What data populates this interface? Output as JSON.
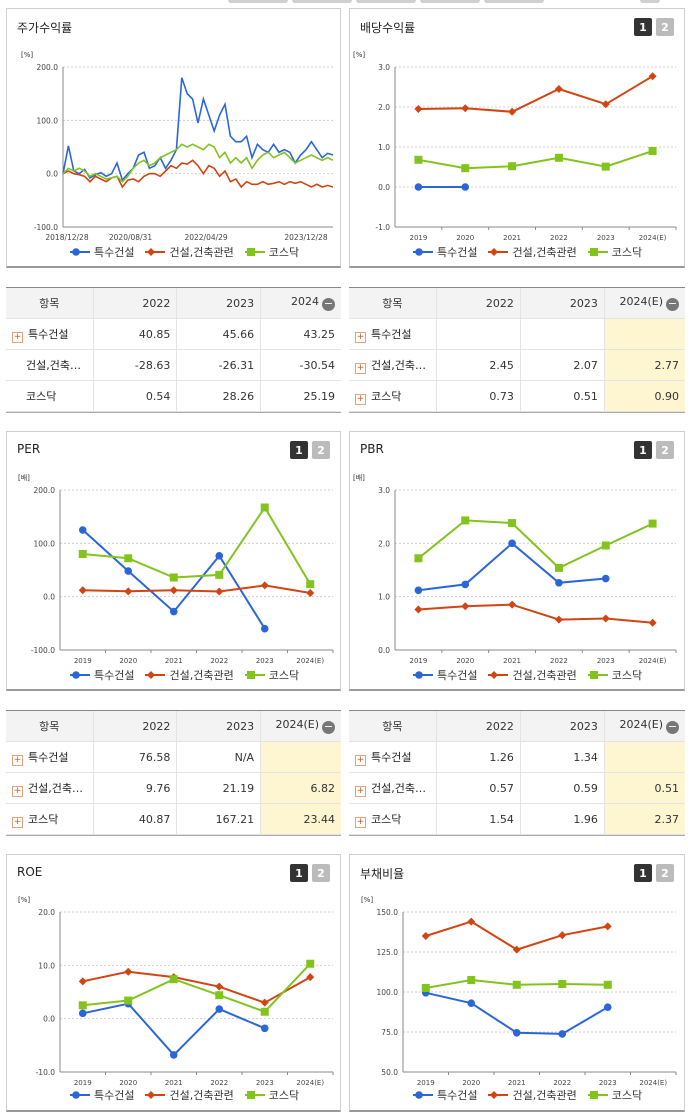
{
  "legend": {
    "series": [
      {
        "name": "특수건설",
        "color": "#2b66d9",
        "marker": "circle"
      },
      {
        "name": "건설,건축관련",
        "color": "#d24412",
        "marker": "diamond"
      },
      {
        "name": "코스닥",
        "color": "#82c31e",
        "marker": "square"
      }
    ]
  },
  "tables": {
    "returns": {
      "header": [
        "항목",
        "2022",
        "2023",
        "2024"
      ],
      "rows": [
        {
          "name": "특수건설",
          "values": [
            "40.85",
            "45.66",
            "43.25"
          ]
        },
        {
          "name": "건설,건축…",
          "values": [
            "-28.63",
            "-26.31",
            "-30.54"
          ]
        },
        {
          "name": "코스닥",
          "values": [
            "0.54",
            "28.26",
            "25.19"
          ]
        }
      ]
    },
    "dividend": {
      "header": [
        "항목",
        "2022",
        "2023",
        "2024(E)"
      ],
      "rows": [
        {
          "name": "특수건설",
          "values": [
            "",
            "",
            ""
          ]
        },
        {
          "name": "건설,건축…",
          "values": [
            "2.45",
            "2.07",
            "2.77"
          ]
        },
        {
          "name": "코스닥",
          "values": [
            "0.73",
            "0.51",
            "0.90"
          ]
        }
      ]
    },
    "per": {
      "header": [
        "항목",
        "2022",
        "2023",
        "2024(E)"
      ],
      "rows": [
        {
          "name": "특수건설",
          "values": [
            "76.58",
            "N/A",
            ""
          ]
        },
        {
          "name": "건설,건축…",
          "values": [
            "9.76",
            "21.19",
            "6.82"
          ]
        },
        {
          "name": "코스닥",
          "values": [
            "40.87",
            "167.21",
            "23.44"
          ]
        }
      ]
    },
    "pbr": {
      "header": [
        "항목",
        "2022",
        "2023",
        "2024(E)"
      ],
      "rows": [
        {
          "name": "특수건설",
          "values": [
            "1.26",
            "1.34",
            ""
          ]
        },
        {
          "name": "건설,건축…",
          "values": [
            "0.57",
            "0.59",
            "0.51"
          ]
        },
        {
          "name": "코스닥",
          "values": [
            "1.54",
            "1.96",
            "2.37"
          ]
        }
      ]
    }
  },
  "chart_data": [
    {
      "id": "returns",
      "type": "line",
      "title": "주가수익률",
      "unit": "[%]",
      "ylim": [
        -100,
        200
      ],
      "yticks": [
        "200.0",
        "100.0",
        "0.0",
        "-100.0"
      ],
      "ytick_values": [
        200,
        100,
        0,
        -100
      ],
      "xticks": [
        "2018/12/28",
        "2020/08/31",
        "2022/04/29",
        "2023/12/28"
      ],
      "xtick_pos": [
        0,
        0.25,
        0.53,
        0.9
      ],
      "x": [
        0,
        0.02,
        0.04,
        0.06,
        0.08,
        0.1,
        0.12,
        0.14,
        0.16,
        0.18,
        0.2,
        0.22,
        0.24,
        0.26,
        0.28,
        0.3,
        0.32,
        0.34,
        0.36,
        0.38,
        0.4,
        0.42,
        0.44,
        0.46,
        0.48,
        0.5,
        0.52,
        0.54,
        0.56,
        0.58,
        0.6,
        0.62,
        0.64,
        0.66,
        0.68,
        0.7,
        0.72,
        0.74,
        0.76,
        0.78,
        0.8,
        0.82,
        0.84,
        0.86,
        0.88,
        0.9,
        0.92,
        0.94,
        0.96,
        0.98,
        1.0
      ],
      "series": [
        {
          "name": "특수건설",
          "values": [
            0,
            52,
            5,
            0,
            8,
            -8,
            -2,
            2,
            -5,
            0,
            20,
            -12,
            0,
            10,
            35,
            40,
            10,
            15,
            30,
            10,
            25,
            45,
            180,
            150,
            140,
            95,
            140,
            110,
            80,
            110,
            130,
            70,
            60,
            60,
            70,
            30,
            55,
            45,
            40,
            55,
            40,
            45,
            40,
            20,
            35,
            45,
            60,
            45,
            30,
            38,
            35
          ]
        },
        {
          "name": "건설,건축관련",
          "values": [
            0,
            5,
            0,
            -2,
            -5,
            -15,
            -5,
            -10,
            -15,
            -8,
            -5,
            -25,
            -12,
            -10,
            -15,
            -5,
            0,
            0,
            -5,
            5,
            15,
            10,
            20,
            18,
            25,
            15,
            0,
            15,
            10,
            -5,
            5,
            -15,
            -10,
            -25,
            -15,
            -20,
            -20,
            -15,
            -20,
            -18,
            -15,
            -20,
            -15,
            -18,
            -15,
            -20,
            -25,
            -20,
            -25,
            -22,
            -25
          ]
        },
        {
          "name": "코스닥",
          "values": [
            0,
            10,
            5,
            10,
            5,
            -5,
            0,
            -5,
            -10,
            -8,
            -5,
            -15,
            -5,
            10,
            20,
            25,
            15,
            20,
            30,
            35,
            40,
            45,
            55,
            50,
            55,
            50,
            45,
            55,
            50,
            30,
            40,
            20,
            30,
            20,
            30,
            10,
            25,
            35,
            40,
            30,
            35,
            40,
            30,
            20,
            25,
            30,
            35,
            30,
            25,
            30,
            25
          ]
        }
      ]
    },
    {
      "id": "dividend",
      "type": "line",
      "title": "배당수익률",
      "unit": "[%]",
      "ylim": [
        -1,
        3
      ],
      "yticks": [
        "3.0",
        "2.0",
        "1.0",
        "0.0",
        "-1.0"
      ],
      "ytick_values": [
        3,
        2,
        1,
        0,
        -1
      ],
      "categories": [
        "2019",
        "2020",
        "2021",
        "2022",
        "2023",
        "2024(E)"
      ],
      "series": [
        {
          "name": "특수건설",
          "values": [
            0.0,
            0.0,
            null,
            null,
            null,
            null
          ]
        },
        {
          "name": "건설,건축관련",
          "values": [
            1.95,
            1.97,
            1.88,
            2.45,
            2.07,
            2.77
          ]
        },
        {
          "name": "코스닥",
          "values": [
            0.68,
            0.47,
            0.52,
            0.73,
            0.51,
            0.9
          ]
        }
      ]
    },
    {
      "id": "per",
      "type": "line",
      "title": "PER",
      "unit": "[배]",
      "ylim": [
        -100,
        200
      ],
      "yticks": [
        "200.0",
        "100.0",
        "0.0",
        "-100.0"
      ],
      "ytick_values": [
        200,
        100,
        0,
        -100
      ],
      "categories": [
        "2019",
        "2020",
        "2021",
        "2022",
        "2023",
        "2024(E)"
      ],
      "series": [
        {
          "name": "특수건설",
          "values": [
            125,
            48,
            -28,
            76.58,
            -60,
            null
          ]
        },
        {
          "name": "건설,건축관련",
          "values": [
            12,
            10,
            12,
            9.76,
            21.19,
            6.82
          ]
        },
        {
          "name": "코스닥",
          "values": [
            80,
            72,
            36,
            40.87,
            167.21,
            23.44
          ]
        }
      ]
    },
    {
      "id": "pbr",
      "type": "line",
      "title": "PBR",
      "unit": "[배]",
      "ylim": [
        0,
        3
      ],
      "yticks": [
        "3.0",
        "2.0",
        "1.0",
        "0.0"
      ],
      "ytick_values": [
        3,
        2,
        1,
        0
      ],
      "categories": [
        "2019",
        "2020",
        "2021",
        "2022",
        "2023",
        "2024(E)"
      ],
      "series": [
        {
          "name": "특수건설",
          "values": [
            1.12,
            1.23,
            2.0,
            1.26,
            1.34,
            null
          ]
        },
        {
          "name": "건설,건축관련",
          "values": [
            0.76,
            0.82,
            0.85,
            0.57,
            0.59,
            0.51
          ]
        },
        {
          "name": "코스닥",
          "values": [
            1.72,
            2.43,
            2.38,
            1.54,
            1.96,
            2.37
          ]
        }
      ]
    },
    {
      "id": "roe",
      "type": "line",
      "title": "ROE",
      "unit": "[%]",
      "ylim": [
        -10,
        20
      ],
      "yticks": [
        "20.0",
        "10.0",
        "0.0",
        "-10.0"
      ],
      "ytick_values": [
        20,
        10,
        0,
        -10
      ],
      "categories": [
        "2019",
        "2020",
        "2021",
        "2022",
        "2023",
        "2024(E)"
      ],
      "series": [
        {
          "name": "특수건설",
          "values": [
            1.0,
            2.8,
            -6.8,
            1.8,
            -1.8,
            null
          ]
        },
        {
          "name": "건설,건축관련",
          "values": [
            7.0,
            8.8,
            7.8,
            6.0,
            3.0,
            7.8
          ]
        },
        {
          "name": "코스닥",
          "values": [
            2.5,
            3.4,
            7.4,
            4.4,
            1.3,
            10.3
          ]
        }
      ]
    },
    {
      "id": "debt",
      "type": "line",
      "title": "부채비율",
      "unit": "[%]",
      "ylim": [
        50,
        150
      ],
      "yticks": [
        "150.0",
        "125.0",
        "100.0",
        "75.0",
        "50.0"
      ],
      "ytick_values": [
        150,
        125,
        100,
        75,
        50
      ],
      "categories": [
        "2019",
        "2020",
        "2021",
        "2022",
        "2023",
        "2024(E)"
      ],
      "series": [
        {
          "name": "특수건설",
          "values": [
            99.5,
            93,
            74.5,
            73.8,
            90.5,
            null
          ]
        },
        {
          "name": "건설,건축관련",
          "values": [
            135,
            144,
            126.5,
            135.5,
            141,
            null
          ]
        },
        {
          "name": "코스닥",
          "values": [
            102.5,
            107.5,
            104.5,
            105,
            104.5,
            null
          ]
        }
      ]
    }
  ]
}
